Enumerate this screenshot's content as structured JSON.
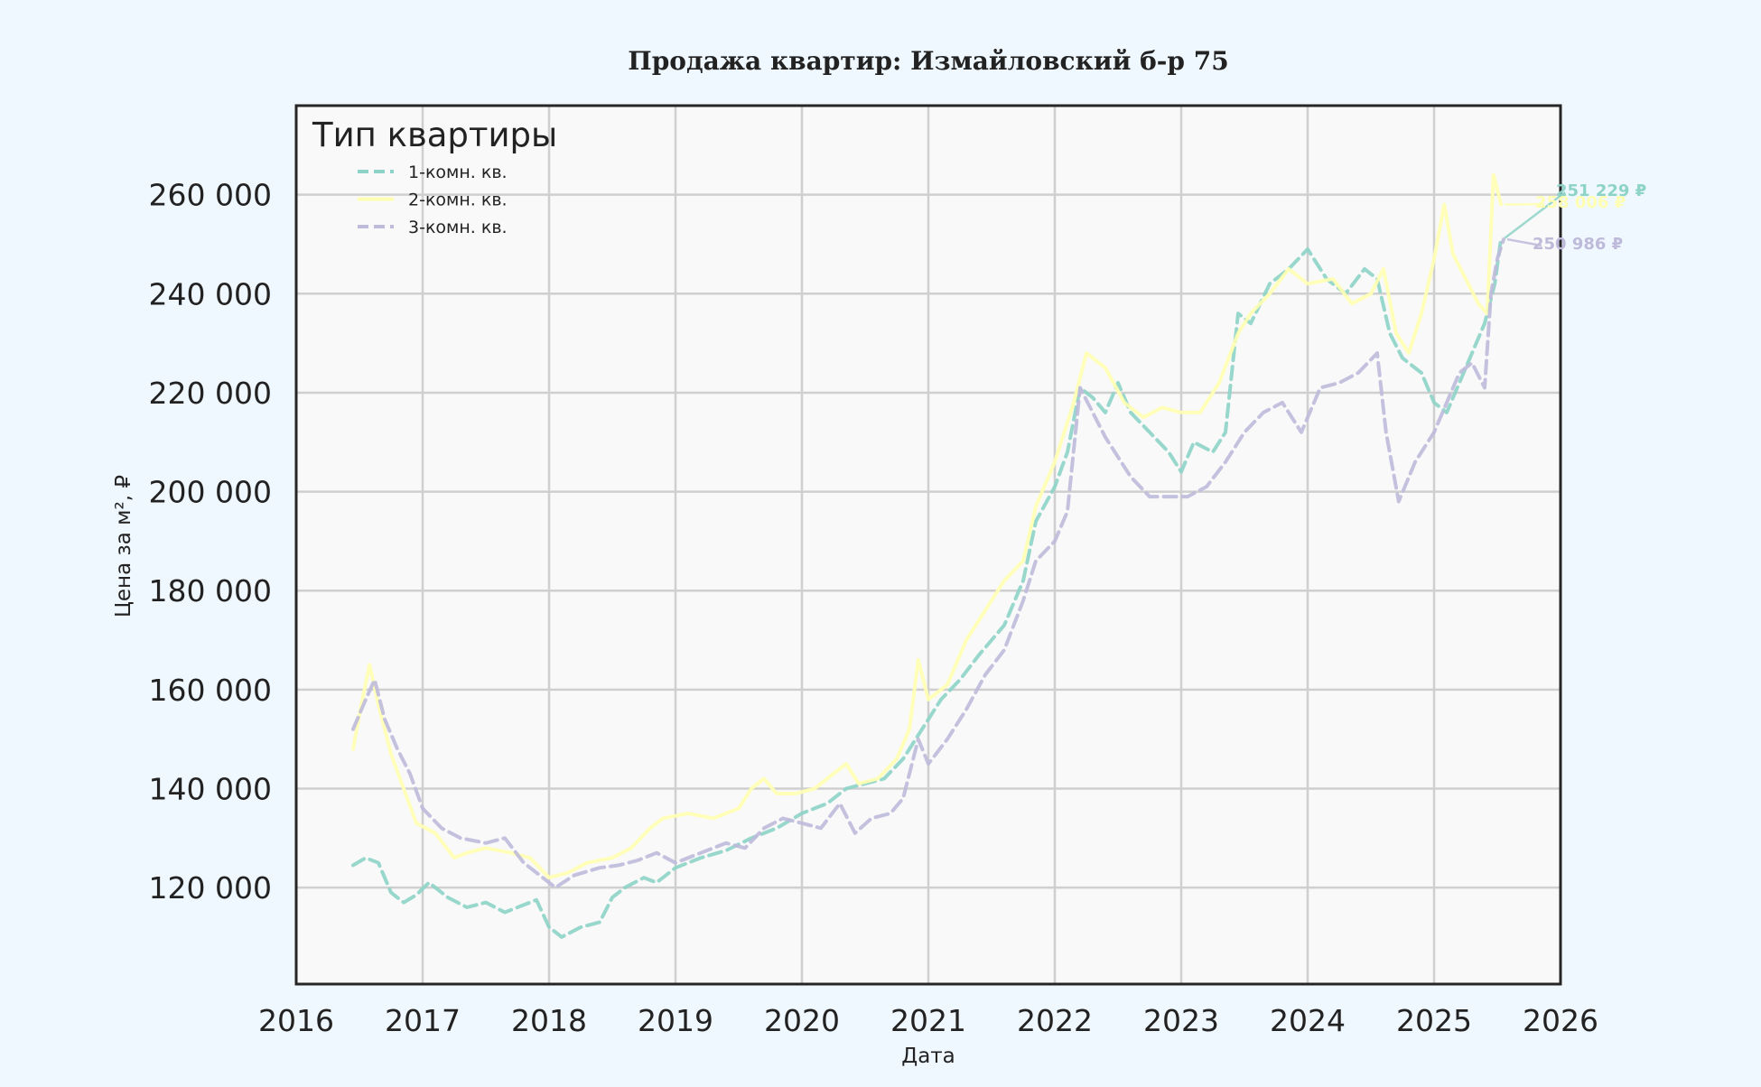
{
  "chart_data": {
    "type": "line",
    "title": "Продажа квартир: Измайловский б-р 75",
    "xlabel": "Дата",
    "ylabel": "Цена за м², ₽",
    "xlim": [
      2016.0,
      2026.0
    ],
    "ylim": [
      100500,
      278000
    ],
    "x_ticks": [
      2016,
      2017,
      2018,
      2019,
      2020,
      2021,
      2022,
      2023,
      2024,
      2025,
      2026
    ],
    "x_tick_labels": [
      "2016",
      "2017",
      "2018",
      "2019",
      "2020",
      "2021",
      "2022",
      "2023",
      "2024",
      "2025",
      "2026"
    ],
    "y_ticks": [
      120000,
      140000,
      160000,
      180000,
      200000,
      220000,
      240000,
      260000
    ],
    "y_tick_labels": [
      "120 000",
      "140 000",
      "160 000",
      "180 000",
      "200 000",
      "220 000",
      "240 000",
      "260 000"
    ],
    "grid": true,
    "legend": {
      "title": "Тип квартиры",
      "position": "top-left"
    },
    "series": [
      {
        "name": "1-комн. кв.",
        "color": "#8dd3c7",
        "style": "dashed",
        "end_label": "251 229 ₽",
        "points": [
          [
            2016.45,
            124500
          ],
          [
            2016.55,
            126000
          ],
          [
            2016.65,
            125000
          ],
          [
            2016.75,
            119000
          ],
          [
            2016.85,
            117000
          ],
          [
            2016.95,
            118500
          ],
          [
            2017.05,
            121000
          ],
          [
            2017.2,
            118000
          ],
          [
            2017.35,
            116000
          ],
          [
            2017.5,
            117000
          ],
          [
            2017.65,
            115000
          ],
          [
            2017.8,
            116500
          ],
          [
            2017.9,
            117500
          ],
          [
            2018.0,
            112000
          ],
          [
            2018.1,
            110000
          ],
          [
            2018.25,
            112000
          ],
          [
            2018.4,
            113000
          ],
          [
            2018.5,
            118000
          ],
          [
            2018.6,
            120000
          ],
          [
            2018.75,
            122000
          ],
          [
            2018.85,
            121000
          ],
          [
            2019.0,
            124000
          ],
          [
            2019.2,
            126000
          ],
          [
            2019.4,
            127500
          ],
          [
            2019.6,
            130000
          ],
          [
            2019.8,
            132000
          ],
          [
            2020.0,
            135000
          ],
          [
            2020.2,
            137000
          ],
          [
            2020.35,
            140000
          ],
          [
            2020.5,
            141000
          ],
          [
            2020.65,
            142000
          ],
          [
            2020.8,
            146000
          ],
          [
            2020.95,
            152000
          ],
          [
            2021.1,
            158000
          ],
          [
            2021.25,
            162000
          ],
          [
            2021.4,
            167000
          ],
          [
            2021.5,
            170000
          ],
          [
            2021.6,
            173000
          ],
          [
            2021.75,
            182000
          ],
          [
            2021.85,
            194000
          ],
          [
            2022.0,
            201000
          ],
          [
            2022.1,
            208000
          ],
          [
            2022.2,
            221000
          ],
          [
            2022.3,
            219000
          ],
          [
            2022.4,
            216000
          ],
          [
            2022.5,
            222000
          ],
          [
            2022.6,
            216000
          ],
          [
            2022.75,
            212000
          ],
          [
            2022.9,
            208000
          ],
          [
            2023.0,
            204000
          ],
          [
            2023.1,
            210000
          ],
          [
            2023.25,
            208000
          ],
          [
            2023.35,
            212000
          ],
          [
            2023.45,
            236000
          ],
          [
            2023.55,
            234000
          ],
          [
            2023.7,
            242000
          ],
          [
            2023.85,
            245000
          ],
          [
            2024.0,
            249000
          ],
          [
            2024.15,
            243000
          ],
          [
            2024.3,
            240000
          ],
          [
            2024.45,
            245000
          ],
          [
            2024.55,
            243000
          ],
          [
            2024.65,
            232000
          ],
          [
            2024.75,
            227000
          ],
          [
            2024.9,
            224000
          ],
          [
            2025.0,
            218000
          ],
          [
            2025.1,
            216000
          ],
          [
            2025.2,
            222000
          ],
          [
            2025.3,
            228000
          ],
          [
            2025.4,
            234000
          ],
          [
            2025.48,
            242000
          ],
          [
            2025.53,
            251229
          ]
        ]
      },
      {
        "name": "2-комн. кв.",
        "color": "#ffffb3",
        "style": "solid",
        "end_label": "258 006 ₽",
        "points": [
          [
            2016.45,
            148000
          ],
          [
            2016.5,
            155000
          ],
          [
            2016.58,
            165000
          ],
          [
            2016.65,
            157000
          ],
          [
            2016.75,
            147000
          ],
          [
            2016.85,
            140000
          ],
          [
            2016.95,
            133000
          ],
          [
            2017.1,
            131000
          ],
          [
            2017.25,
            126000
          ],
          [
            2017.35,
            127000
          ],
          [
            2017.5,
            128000
          ],
          [
            2017.7,
            127000
          ],
          [
            2017.85,
            126000
          ],
          [
            2018.0,
            122000
          ],
          [
            2018.15,
            123000
          ],
          [
            2018.3,
            125000
          ],
          [
            2018.5,
            126000
          ],
          [
            2018.65,
            128000
          ],
          [
            2018.8,
            132000
          ],
          [
            2018.9,
            134000
          ],
          [
            2019.1,
            135000
          ],
          [
            2019.3,
            134000
          ],
          [
            2019.5,
            136000
          ],
          [
            2019.6,
            140000
          ],
          [
            2019.7,
            142000
          ],
          [
            2019.8,
            139000
          ],
          [
            2019.95,
            139000
          ],
          [
            2020.1,
            140000
          ],
          [
            2020.25,
            143000
          ],
          [
            2020.35,
            145000
          ],
          [
            2020.45,
            141000
          ],
          [
            2020.6,
            142000
          ],
          [
            2020.75,
            146000
          ],
          [
            2020.85,
            152000
          ],
          [
            2020.92,
            166000
          ],
          [
            2021.0,
            158000
          ],
          [
            2021.15,
            161000
          ],
          [
            2021.3,
            170000
          ],
          [
            2021.45,
            176000
          ],
          [
            2021.6,
            182000
          ],
          [
            2021.75,
            186000
          ],
          [
            2021.85,
            197000
          ],
          [
            2022.0,
            206000
          ],
          [
            2022.15,
            218000
          ],
          [
            2022.25,
            228000
          ],
          [
            2022.4,
            225000
          ],
          [
            2022.55,
            218000
          ],
          [
            2022.7,
            215000
          ],
          [
            2022.85,
            217000
          ],
          [
            2023.0,
            216000
          ],
          [
            2023.15,
            216000
          ],
          [
            2023.3,
            222000
          ],
          [
            2023.45,
            232000
          ],
          [
            2023.55,
            236000
          ],
          [
            2023.7,
            240000
          ],
          [
            2023.85,
            245000
          ],
          [
            2024.0,
            242000
          ],
          [
            2024.2,
            243000
          ],
          [
            2024.35,
            238000
          ],
          [
            2024.5,
            240000
          ],
          [
            2024.6,
            245000
          ],
          [
            2024.7,
            232000
          ],
          [
            2024.8,
            228000
          ],
          [
            2024.9,
            236000
          ],
          [
            2025.0,
            247000
          ],
          [
            2025.08,
            258000
          ],
          [
            2025.15,
            248000
          ],
          [
            2025.25,
            243000
          ],
          [
            2025.35,
            238000
          ],
          [
            2025.42,
            236000
          ],
          [
            2025.47,
            264000
          ],
          [
            2025.53,
            258006
          ]
        ]
      },
      {
        "name": "3-комн. кв.",
        "color": "#bebada",
        "style": "dashed",
        "end_label": "250 986 ₽",
        "points": [
          [
            2016.45,
            152000
          ],
          [
            2016.55,
            158000
          ],
          [
            2016.62,
            162000
          ],
          [
            2016.7,
            154000
          ],
          [
            2016.8,
            148000
          ],
          [
            2016.9,
            143000
          ],
          [
            2017.0,
            136000
          ],
          [
            2017.15,
            132000
          ],
          [
            2017.3,
            130000
          ],
          [
            2017.5,
            129000
          ],
          [
            2017.65,
            130000
          ],
          [
            2017.8,
            125000
          ],
          [
            2017.95,
            122000
          ],
          [
            2018.05,
            120000
          ],
          [
            2018.2,
            122500
          ],
          [
            2018.4,
            124000
          ],
          [
            2018.55,
            124500
          ],
          [
            2018.7,
            125500
          ],
          [
            2018.85,
            127000
          ],
          [
            2019.0,
            125000
          ],
          [
            2019.2,
            127000
          ],
          [
            2019.4,
            129000
          ],
          [
            2019.55,
            128000
          ],
          [
            2019.7,
            132000
          ],
          [
            2019.85,
            134000
          ],
          [
            2020.0,
            133000
          ],
          [
            2020.15,
            132000
          ],
          [
            2020.3,
            137000
          ],
          [
            2020.42,
            131000
          ],
          [
            2020.55,
            134000
          ],
          [
            2020.7,
            135000
          ],
          [
            2020.8,
            138000
          ],
          [
            2020.92,
            150000
          ],
          [
            2021.0,
            145000
          ],
          [
            2021.15,
            150000
          ],
          [
            2021.3,
            156000
          ],
          [
            2021.45,
            163000
          ],
          [
            2021.6,
            168000
          ],
          [
            2021.75,
            178000
          ],
          [
            2021.85,
            186000
          ],
          [
            2022.0,
            190000
          ],
          [
            2022.1,
            196000
          ],
          [
            2022.2,
            221000
          ],
          [
            2022.3,
            216000
          ],
          [
            2022.4,
            211000
          ],
          [
            2022.5,
            207000
          ],
          [
            2022.6,
            203000
          ],
          [
            2022.75,
            199000
          ],
          [
            2022.9,
            199000
          ],
          [
            2023.05,
            199000
          ],
          [
            2023.2,
            201000
          ],
          [
            2023.35,
            206000
          ],
          [
            2023.5,
            212000
          ],
          [
            2023.65,
            216000
          ],
          [
            2023.8,
            218000
          ],
          [
            2023.95,
            212000
          ],
          [
            2024.1,
            221000
          ],
          [
            2024.25,
            222000
          ],
          [
            2024.4,
            224000
          ],
          [
            2024.55,
            228000
          ],
          [
            2024.62,
            212000
          ],
          [
            2024.72,
            198000
          ],
          [
            2024.85,
            206000
          ],
          [
            2025.0,
            212000
          ],
          [
            2025.1,
            218000
          ],
          [
            2025.2,
            224000
          ],
          [
            2025.3,
            226000
          ],
          [
            2025.4,
            221000
          ],
          [
            2025.45,
            240000
          ],
          [
            2025.5,
            247000
          ],
          [
            2025.55,
            250986
          ]
        ]
      }
    ]
  }
}
